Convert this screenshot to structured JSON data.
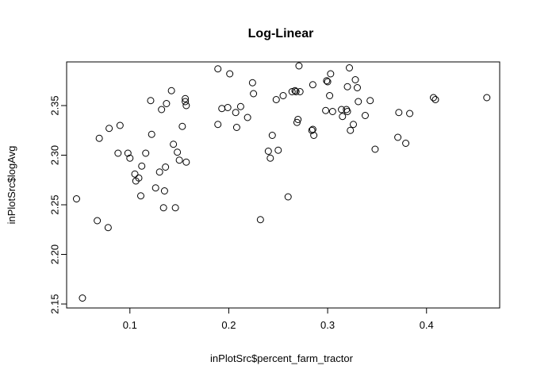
{
  "chart_data": {
    "type": "scatter",
    "title": "Log-Linear",
    "xlabel": "inPlotSrc$percent_farm_tractor",
    "ylabel": "inPlotSrc$logAvg",
    "xlim": [
      0.036,
      0.474
    ],
    "ylim": [
      2.146,
      2.394
    ],
    "xticks": [
      0.1,
      0.2,
      0.3,
      0.4
    ],
    "xtick_labels": [
      "0.1",
      "0.2",
      "0.3",
      "0.4"
    ],
    "yticks": [
      2.15,
      2.2,
      2.25,
      2.3,
      2.35
    ],
    "ytick_labels": [
      "2.15",
      "2.20",
      "2.25",
      "2.30",
      "2.35"
    ],
    "grid": false,
    "legend": "none",
    "series": [
      {
        "marker": "open-circle",
        "points": [
          [
            0.046,
            2.256
          ],
          [
            0.052,
            2.156
          ],
          [
            0.067,
            2.234
          ],
          [
            0.069,
            2.317
          ],
          [
            0.078,
            2.227
          ],
          [
            0.079,
            2.327
          ],
          [
            0.088,
            2.302
          ],
          [
            0.09,
            2.33
          ],
          [
            0.098,
            2.302
          ],
          [
            0.1,
            2.297
          ],
          [
            0.105,
            2.281
          ],
          [
            0.106,
            2.274
          ],
          [
            0.109,
            2.277
          ],
          [
            0.111,
            2.259
          ],
          [
            0.112,
            2.289
          ],
          [
            0.116,
            2.302
          ],
          [
            0.121,
            2.355
          ],
          [
            0.122,
            2.321
          ],
          [
            0.126,
            2.267
          ],
          [
            0.13,
            2.283
          ],
          [
            0.132,
            2.346
          ],
          [
            0.134,
            2.247
          ],
          [
            0.135,
            2.264
          ],
          [
            0.136,
            2.288
          ],
          [
            0.137,
            2.352
          ],
          [
            0.142,
            2.365
          ],
          [
            0.144,
            2.311
          ],
          [
            0.146,
            2.247
          ],
          [
            0.148,
            2.303
          ],
          [
            0.15,
            2.295
          ],
          [
            0.153,
            2.329
          ],
          [
            0.156,
            2.357
          ],
          [
            0.156,
            2.354
          ],
          [
            0.157,
            2.35
          ],
          [
            0.157,
            2.293
          ],
          [
            0.189,
            2.387
          ],
          [
            0.189,
            2.331
          ],
          [
            0.193,
            2.347
          ],
          [
            0.199,
            2.348
          ],
          [
            0.201,
            2.382
          ],
          [
            0.207,
            2.343
          ],
          [
            0.208,
            2.328
          ],
          [
            0.212,
            2.349
          ],
          [
            0.219,
            2.338
          ],
          [
            0.224,
            2.373
          ],
          [
            0.225,
            2.362
          ],
          [
            0.232,
            2.235
          ],
          [
            0.24,
            2.304
          ],
          [
            0.242,
            2.297
          ],
          [
            0.244,
            2.32
          ],
          [
            0.248,
            2.356
          ],
          [
            0.25,
            2.305
          ],
          [
            0.255,
            2.36
          ],
          [
            0.26,
            2.258
          ],
          [
            0.264,
            2.364
          ],
          [
            0.267,
            2.365
          ],
          [
            0.268,
            2.364
          ],
          [
            0.269,
            2.333
          ],
          [
            0.27,
            2.336
          ],
          [
            0.271,
            2.39
          ],
          [
            0.272,
            2.364
          ],
          [
            0.284,
            2.325
          ],
          [
            0.285,
            2.371
          ],
          [
            0.285,
            2.326
          ],
          [
            0.286,
            2.32
          ],
          [
            0.298,
            2.345
          ],
          [
            0.299,
            2.375
          ],
          [
            0.3,
            2.374
          ],
          [
            0.302,
            2.36
          ],
          [
            0.303,
            2.382
          ],
          [
            0.305,
            2.344
          ],
          [
            0.314,
            2.346
          ],
          [
            0.315,
            2.339
          ],
          [
            0.319,
            2.346
          ],
          [
            0.32,
            2.344
          ],
          [
            0.32,
            2.369
          ],
          [
            0.322,
            2.388
          ],
          [
            0.323,
            2.325
          ],
          [
            0.326,
            2.331
          ],
          [
            0.328,
            2.376
          ],
          [
            0.33,
            2.368
          ],
          [
            0.331,
            2.354
          ],
          [
            0.338,
            2.34
          ],
          [
            0.343,
            2.355
          ],
          [
            0.348,
            2.306
          ],
          [
            0.371,
            2.318
          ],
          [
            0.372,
            2.343
          ],
          [
            0.379,
            2.312
          ],
          [
            0.383,
            2.342
          ],
          [
            0.407,
            2.358
          ],
          [
            0.409,
            2.356
          ],
          [
            0.461,
            2.358
          ]
        ]
      }
    ]
  }
}
